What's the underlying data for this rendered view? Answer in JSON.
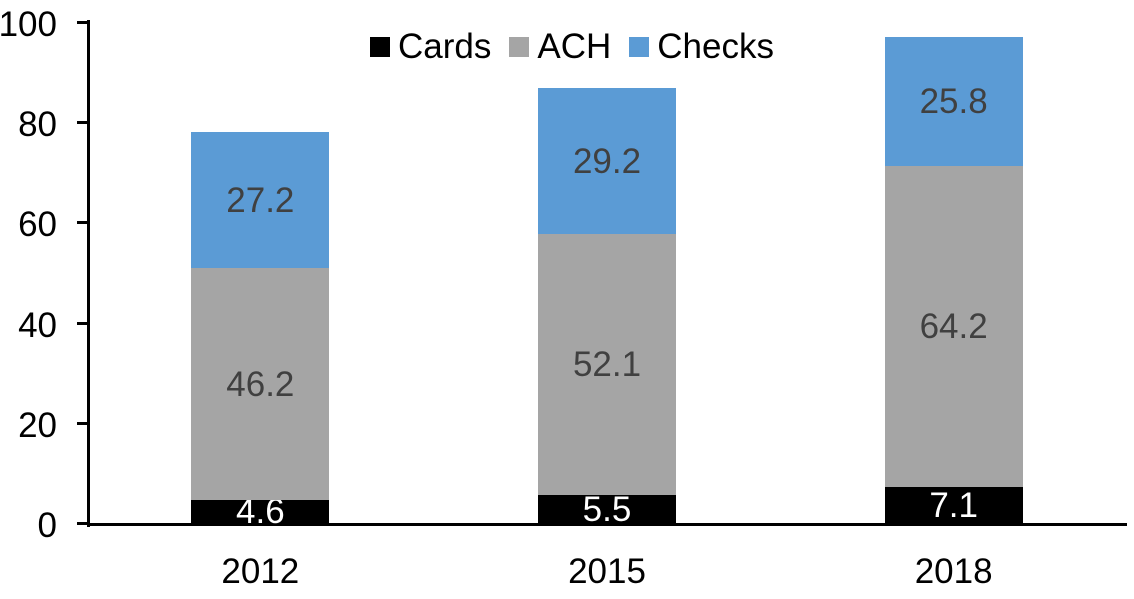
{
  "chart_data": {
    "type": "bar",
    "stacked": true,
    "title": "",
    "xlabel": "",
    "ylabel": "",
    "categories": [
      "2012",
      "2015",
      "2018"
    ],
    "series": [
      {
        "name": "Cards",
        "color": "#000000",
        "label_color": "#ffffff",
        "values": [
          4.6,
          5.5,
          7.1
        ]
      },
      {
        "name": "ACH",
        "color": "#a5a5a5",
        "label_color": "#404040",
        "values": [
          46.2,
          52.1,
          64.2
        ]
      },
      {
        "name": "Checks",
        "color": "#5b9bd5",
        "label_color": "#404040",
        "values": [
          27.2,
          29.2,
          25.8
        ]
      }
    ],
    "totals": [
      78.0,
      86.8,
      97.1
    ],
    "yticks": [
      0,
      20,
      40,
      60,
      80,
      100
    ],
    "ylim": [
      0,
      100
    ],
    "grid": false,
    "legend_position": "top-center",
    "legend_entries": [
      "Cards",
      "ACH",
      "Checks"
    ],
    "axis_color": "#000000",
    "background_color": "#ffffff"
  }
}
